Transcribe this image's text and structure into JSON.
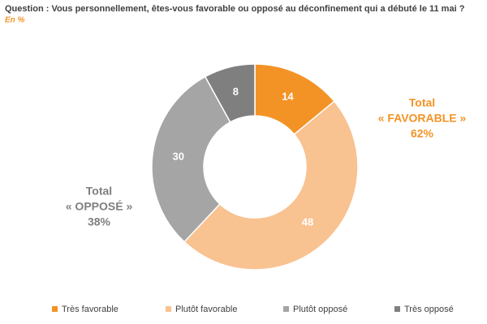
{
  "chart_data": {
    "type": "donut",
    "title": "Question : Vous personnellement, êtes-vous favorable ou opposé au déconfinement qui a débuté le 11 mai ?",
    "subtitle": "En %",
    "categories": [
      "Très favorable",
      "Plutôt favorable",
      "Plutôt opposé",
      "Très opposé"
    ],
    "values": [
      14,
      48,
      30,
      8
    ],
    "colors": [
      "#F39325",
      "#F9C291",
      "#A5A5A5",
      "#7F7F7F"
    ],
    "annotations": [
      {
        "lines": [
          "Total",
          "« FAVORABLE »",
          "62%"
        ],
        "color": "#F39325"
      },
      {
        "lines": [
          "Total",
          "« OPPOSÉ »",
          "38%"
        ],
        "color": "#7F7F7F"
      }
    ],
    "legend": "bottom"
  }
}
